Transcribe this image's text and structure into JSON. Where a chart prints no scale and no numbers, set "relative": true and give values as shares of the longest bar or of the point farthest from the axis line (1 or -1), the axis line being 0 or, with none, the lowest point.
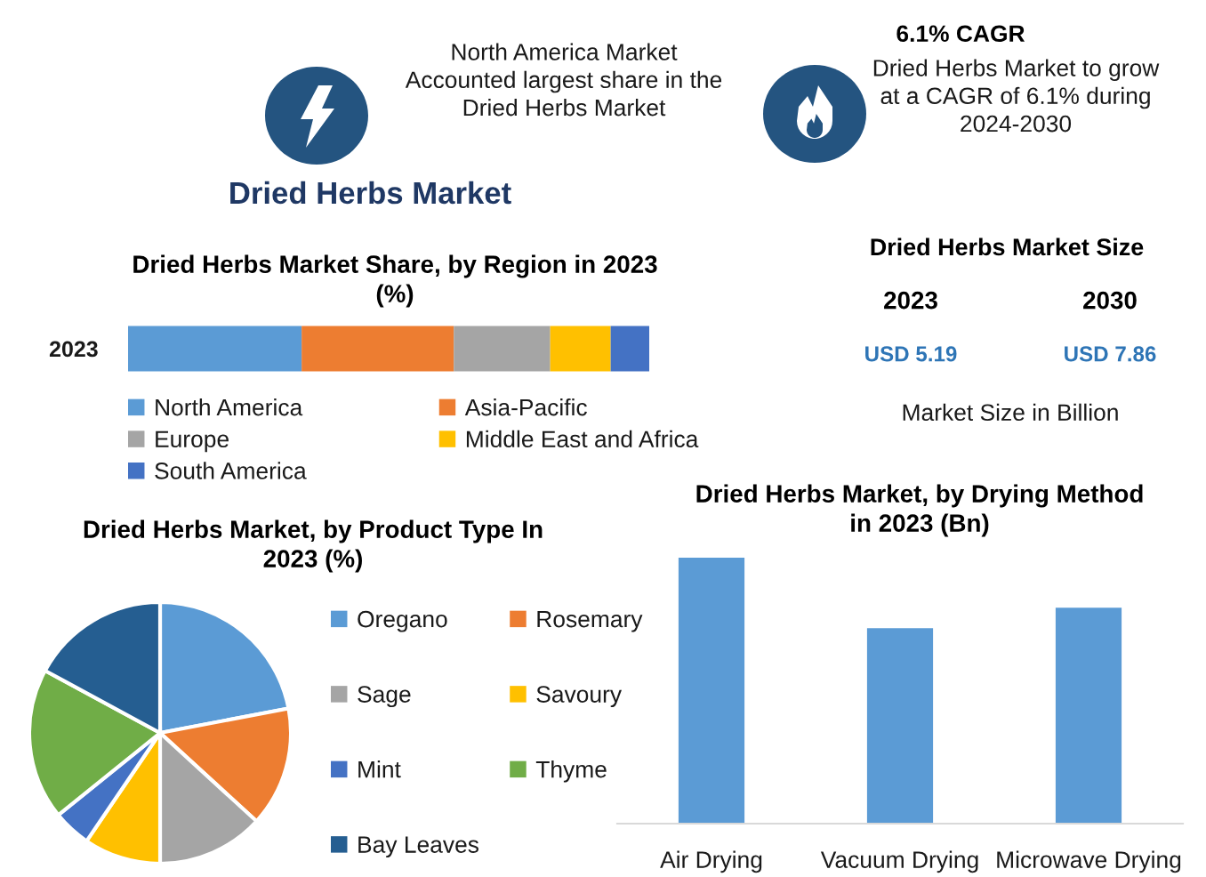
{
  "chart_data": [
    {
      "type": "other",
      "annotations": [
        "North America Market Accounted largest share in the Dried Herbs Market"
      ]
    },
    {
      "type": "other",
      "title": "6.1% CAGR",
      "annotations": [
        "Dried Herbs Market to grow at a CAGR of 6.1% during 2024-2030"
      ]
    },
    {
      "type": "other",
      "title": "Dried Herbs Market"
    },
    {
      "type": "bar",
      "title": "Dried Herbs Market Share, by Region in 2023 (%)",
      "orientation": "horizontal",
      "stacked": true,
      "relative": true,
      "categories": [
        "2023"
      ],
      "series": [
        {
          "name": "North America",
          "color": "#5b9bd5",
          "values": [
            0.333
          ]
        },
        {
          "name": "Asia-Pacific",
          "color": "#ed7d31",
          "values": [
            0.292
          ]
        },
        {
          "name": "Europe",
          "color": "#a5a5a5",
          "values": [
            0.185
          ]
        },
        {
          "name": "Middle East and Africa",
          "color": "#ffc000",
          "values": [
            0.116
          ]
        },
        {
          "name": "South America",
          "color": "#4472c4",
          "values": [
            0.074
          ]
        }
      ],
      "legend": "bottom"
    },
    {
      "type": "other",
      "title": "Dried Herbs Market Size",
      "annotations": [
        "2023",
        "2030",
        "USD 5.19",
        "USD 7.86",
        "Market Size in Billion"
      ]
    },
    {
      "type": "pie",
      "title": "Dried Herbs Market, by Product Type In 2023 (%)",
      "categories": [
        "Oregano",
        "Rosemary",
        "Sage",
        "Savoury",
        "Mint",
        "Thyme",
        "Bay Leaves"
      ],
      "values": [
        22.0,
        14.8,
        13.2,
        9.5,
        4.7,
        18.7,
        17.1
      ],
      "colors": [
        "#5b9bd5",
        "#ed7d31",
        "#a5a5a5",
        "#ffc000",
        "#4472c4",
        "#70ad47",
        "#255e91"
      ],
      "legend": "right"
    },
    {
      "type": "bar",
      "title": "Dried Herbs Market, by Drying Method in 2023 (Bn)",
      "categories": [
        "Air Drying",
        "Vacuum Drying",
        "Microwave Drying"
      ],
      "values": [
        1,
        0.735,
        0.812
      ],
      "color": "#5b9bd5",
      "relative": true
    }
  ]
}
